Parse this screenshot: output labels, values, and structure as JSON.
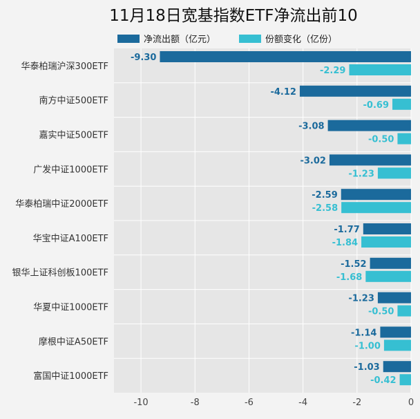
{
  "chart_data": {
    "type": "bar",
    "orientation": "horizontal",
    "title": "11月18日宽基指数ETF净流出前10",
    "categories": [
      "华泰柏瑞沪深300ETF",
      "南方中证500ETF",
      "嘉实中证500ETF",
      "广发中证1000ETF",
      "华泰柏瑞中证2000ETF",
      "华宝中证A100ETF",
      "银华上证科创板100ETF",
      "华夏中证1000ETF",
      "摩根中证A50ETF",
      "富国中证1000ETF"
    ],
    "series": [
      {
        "name": "净流出额（亿元）",
        "color": "#1b6a9c",
        "values": [
          -9.3,
          -4.12,
          -3.08,
          -3.02,
          -2.59,
          -1.77,
          -1.52,
          -1.23,
          -1.14,
          -1.03
        ],
        "labels": [
          "-9.30",
          "-4.12",
          "-3.08",
          "-3.02",
          "-2.59",
          "-1.77",
          "-1.52",
          "-1.23",
          "-1.14",
          "-1.03"
        ]
      },
      {
        "name": "份额变化（亿份）",
        "color": "#36bfd2",
        "values": [
          -2.29,
          -0.69,
          -0.5,
          -1.23,
          -2.58,
          -1.84,
          -1.68,
          -0.5,
          -1.0,
          -0.42
        ],
        "labels": [
          "-2.29",
          "-0.69",
          "-0.50",
          "-1.23",
          "-2.58",
          "-1.84",
          "-1.68",
          "-0.50",
          "-1.00",
          "-0.42"
        ]
      }
    ],
    "xlim": [
      -11,
      0
    ],
    "xticks": [
      -10,
      -8,
      -6,
      -4,
      -2,
      0
    ],
    "xtick_labels": [
      "-10",
      "-8",
      "-6",
      "-4",
      "-2",
      "0"
    ],
    "grid": true,
    "legend_position": "top-center"
  },
  "colors": {
    "background": "#f3f3f3",
    "plot_background": "#e6e6e6",
    "grid": "#ffffff"
  }
}
